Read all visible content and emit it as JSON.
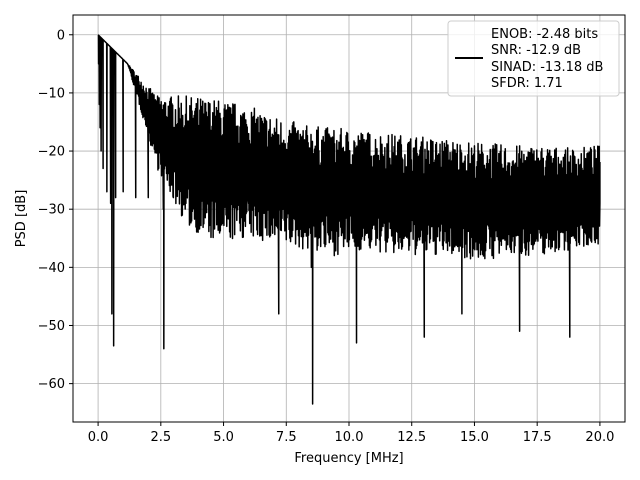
{
  "chart_data": {
    "type": "line",
    "title": "",
    "xlabel": "Frequency [MHz]",
    "ylabel": "PSD [dB]",
    "xlim": [
      -1.0,
      21.0
    ],
    "ylim": [
      -66.6,
      3.4
    ],
    "xticks": [
      0.0,
      2.5,
      5.0,
      7.5,
      10.0,
      12.5,
      15.0,
      17.5,
      20.0
    ],
    "xtick_labels": [
      "0.0",
      "2.5",
      "5.0",
      "7.5",
      "10.0",
      "12.5",
      "15.0",
      "17.5",
      "20.0"
    ],
    "yticks": [
      0,
      -10,
      -20,
      -30,
      -40,
      -50,
      -60
    ],
    "ytick_labels": [
      "0",
      "−10",
      "−20",
      "−30",
      "−40",
      "−50",
      "−60"
    ],
    "grid": true,
    "legend_position": "top-right",
    "legend_entries": [
      "ENOB: -2.48 bits",
      "SNR: -12.9 dB",
      "SINAD: -13.18 dB",
      "SFDR: 1.71"
    ],
    "series": [
      {
        "color": "#000000",
        "x": [
          0.0,
          0.02,
          0.05,
          0.08,
          0.12,
          0.2,
          0.35,
          0.5,
          0.55,
          0.62,
          0.7,
          1.0,
          1.5,
          2.0,
          2.6,
          2.62,
          3.0,
          4.0,
          5.0,
          6.0,
          7.0,
          7.2,
          7.5,
          8.0,
          8.5,
          8.55,
          8.6,
          9.0,
          10.0,
          10.3,
          11.0,
          12.0,
          12.5,
          13.0,
          14.0,
          14.5,
          15.0,
          16.0,
          16.8,
          17.0,
          18.0,
          18.8,
          19.0,
          19.5,
          20.0
        ],
        "y": [
          0.0,
          -5.0,
          -12.0,
          -16.0,
          -20.0,
          -23.0,
          -27.0,
          -29.0,
          -48.0,
          -53.5,
          -28.0,
          -27.0,
          -28.0,
          -28.0,
          -30.0,
          -54.0,
          -28.0,
          -28.0,
          -28.0,
          -29.0,
          -28.0,
          -48.0,
          -28.0,
          -29.0,
          -40.0,
          -63.5,
          -28.0,
          -29.0,
          -28.0,
          -53.0,
          -29.0,
          -28.0,
          -29.0,
          -52.0,
          -29.0,
          -48.0,
          -29.0,
          -28.0,
          -51.0,
          -29.0,
          -28.0,
          -52.0,
          -29.0,
          -28.0,
          -29.0
        ],
        "envelope_upper": [
          0.0,
          -5.0,
          -10.5,
          -10.5,
          -11.0,
          -12.0,
          -14.0,
          -15.5,
          -16.0,
          -16.5,
          -17.0,
          -17.5,
          -18.0,
          -18.5,
          -19.0,
          -19.0,
          -19.5,
          -19.0
        ],
        "envelope_lower": [
          0.0,
          -5.0,
          -23.0,
          -33.0,
          -36.0,
          -35.0,
          -36.0,
          -37.0,
          -38.0,
          -37.0,
          -38.0,
          -38.0,
          -38.0,
          -39.0,
          -38.0,
          -38.0,
          -37.0,
          -36.0
        ]
      }
    ]
  }
}
